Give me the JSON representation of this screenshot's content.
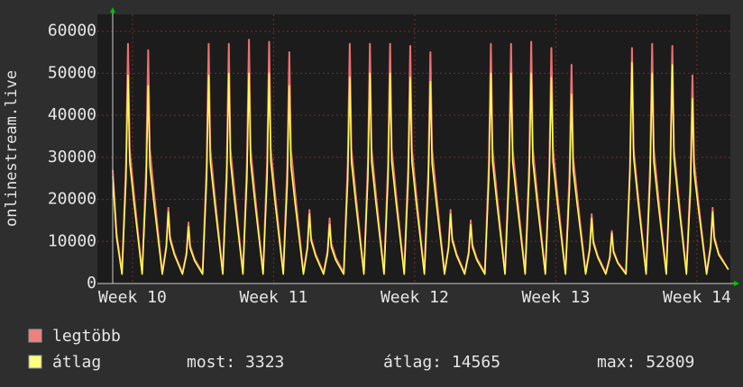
{
  "chart_data": {
    "type": "line",
    "y_label": "onlinestream.live",
    "xlim": [
      0,
      31.4
    ],
    "ylim": [
      0,
      64000
    ],
    "yticks": [
      0,
      10000,
      20000,
      30000,
      40000,
      50000,
      60000
    ],
    "xticks": [
      {
        "value": 1.74,
        "label": "Week 10"
      },
      {
        "value": 8.74,
        "label": "Week 11"
      },
      {
        "value": 15.74,
        "label": "Week 12"
      },
      {
        "value": 22.74,
        "label": "Week 13"
      },
      {
        "value": 29.74,
        "label": "Week 14"
      }
    ],
    "grid": true,
    "x": [
      0.76,
      0.95,
      1.22,
      1.42,
      1.52,
      1.6,
      1.82,
      2.22,
      2.42,
      2.52,
      2.6,
      2.82,
      3.22,
      3.42,
      3.52,
      3.6,
      3.82,
      4.22,
      4.42,
      4.52,
      4.6,
      4.82,
      5.22,
      5.42,
      5.52,
      5.6,
      5.82,
      6.22,
      6.42,
      6.52,
      6.6,
      6.82,
      7.22,
      7.42,
      7.52,
      7.6,
      7.82,
      8.22,
      8.42,
      8.52,
      8.6,
      8.82,
      9.22,
      9.42,
      9.52,
      9.6,
      9.82,
      10.22,
      10.42,
      10.52,
      10.6,
      10.82,
      11.22,
      11.42,
      11.52,
      11.6,
      11.82,
      12.22,
      12.42,
      12.52,
      12.6,
      12.82,
      13.22,
      13.42,
      13.52,
      13.6,
      13.82,
      14.22,
      14.42,
      14.52,
      14.6,
      14.82,
      15.22,
      15.42,
      15.52,
      15.6,
      15.82,
      16.22,
      16.42,
      16.52,
      16.6,
      16.82,
      17.22,
      17.42,
      17.52,
      17.6,
      17.82,
      18.22,
      18.42,
      18.52,
      18.6,
      18.82,
      19.22,
      19.42,
      19.52,
      19.6,
      19.82,
      20.22,
      20.42,
      20.52,
      20.6,
      20.82,
      21.22,
      21.42,
      21.52,
      21.6,
      21.82,
      22.22,
      22.42,
      22.52,
      22.6,
      22.82,
      23.22,
      23.42,
      23.52,
      23.6,
      23.82,
      24.22,
      24.42,
      24.52,
      24.6,
      24.82,
      25.22,
      25.42,
      25.52,
      25.6,
      25.82,
      26.22,
      26.42,
      26.52,
      26.6,
      26.82,
      27.22,
      27.42,
      27.52,
      27.6,
      27.82,
      28.22,
      28.42,
      28.52,
      28.6,
      28.82,
      29.22,
      29.42,
      29.52,
      29.6,
      29.82,
      30.22,
      30.42,
      30.52,
      30.6,
      30.82,
      31.3
    ],
    "series": [
      {
        "name": "legtöbb",
        "color": "#f07070",
        "values": [
          27000,
          12000,
          2500,
          28500,
          57000,
          32000,
          21000,
          2500,
          27800,
          55500,
          32000,
          21000,
          2500,
          9000,
          18000,
          11200,
          7200,
          2500,
          7300,
          14500,
          9000,
          5800,
          2500,
          28500,
          57000,
          32000,
          21000,
          2500,
          28500,
          57000,
          32000,
          21000,
          2500,
          29000,
          58000,
          32000,
          21000,
          2500,
          28800,
          57500,
          32000,
          21000,
          2500,
          27500,
          55000,
          32000,
          21000,
          2500,
          8800,
          17500,
          10900,
          7000,
          2500,
          7800,
          15500,
          9600,
          6200,
          2500,
          28500,
          57000,
          32000,
          21000,
          2500,
          28500,
          57000,
          32000,
          21000,
          2500,
          28500,
          57000,
          32000,
          21000,
          2500,
          28300,
          56500,
          32000,
          21000,
          2500,
          27500,
          55000,
          32000,
          21000,
          2500,
          8800,
          17500,
          10900,
          7000,
          2500,
          7500,
          15000,
          9300,
          6000,
          2500,
          28500,
          57000,
          32000,
          21000,
          2500,
          28500,
          57000,
          32000,
          21000,
          2500,
          28800,
          57500,
          32000,
          21000,
          2500,
          28000,
          56000,
          32000,
          21000,
          2500,
          26000,
          52000,
          30000,
          20000,
          2500,
          8300,
          16500,
          10200,
          6600,
          2500,
          6300,
          12500,
          7800,
          5000,
          2500,
          28000,
          56000,
          32000,
          21000,
          2500,
          28500,
          57000,
          32000,
          21000,
          2500,
          28300,
          56500,
          32000,
          21000,
          2500,
          24800,
          49500,
          29000,
          19000,
          2500,
          9000,
          18000,
          11200,
          7200,
          3300
        ]
      },
      {
        "name": "átlag",
        "color": "#ffff55",
        "values": [
          25500,
          11000,
          2200,
          24800,
          49500,
          29000,
          19000,
          2200,
          23500,
          47000,
          28000,
          18500,
          2200,
          8500,
          17000,
          10500,
          6800,
          2200,
          6800,
          13500,
          8400,
          5400,
          2200,
          24800,
          49500,
          29000,
          19000,
          2200,
          25000,
          50000,
          29000,
          19000,
          2200,
          25000,
          50000,
          29000,
          19000,
          2200,
          25000,
          50000,
          29000,
          19000,
          2200,
          23500,
          47000,
          28000,
          18500,
          2200,
          8300,
          16500,
          10200,
          6600,
          2200,
          7000,
          14000,
          8700,
          5600,
          2200,
          24500,
          49000,
          29000,
          19000,
          2200,
          25000,
          50000,
          29000,
          19000,
          2200,
          25000,
          50000,
          29000,
          19000,
          2200,
          24500,
          49000,
          29000,
          19000,
          2200,
          24000,
          48000,
          28500,
          18800,
          2200,
          8300,
          16500,
          10200,
          6600,
          2200,
          7000,
          14000,
          8700,
          5600,
          2200,
          25000,
          50000,
          29000,
          19000,
          2200,
          25000,
          50000,
          29000,
          19000,
          2200,
          25000,
          50000,
          29000,
          19000,
          2200,
          24500,
          49000,
          29000,
          19000,
          2200,
          22500,
          45000,
          27000,
          18000,
          2200,
          7800,
          15500,
          9600,
          6200,
          2200,
          6000,
          12000,
          7400,
          4800,
          2200,
          26300,
          52500,
          30000,
          19500,
          2200,
          25000,
          50000,
          29000,
          19000,
          2200,
          26000,
          52000,
          30000,
          19500,
          2200,
          22000,
          44000,
          26500,
          17500,
          2200,
          8500,
          17000,
          10500,
          6800,
          3323
        ]
      }
    ],
    "legend_stats": [
      {
        "label": "most:",
        "value": 3323
      },
      {
        "label": "átlag:",
        "value": 14565
      },
      {
        "label": "max:",
        "value": 52809
      }
    ]
  }
}
